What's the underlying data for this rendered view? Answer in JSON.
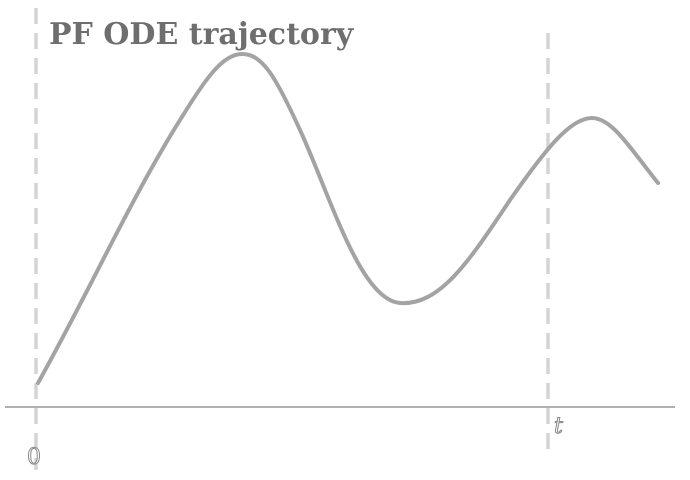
{
  "diagram": {
    "title": "PF ODE trajectory",
    "labels": {
      "start": "0",
      "time": "t"
    }
  },
  "colors": {
    "curve": "#a3a3a3",
    "axis": "#b0b0b0",
    "dashed_markers": "#d4d4d4",
    "title": "#6e6e6e"
  }
}
